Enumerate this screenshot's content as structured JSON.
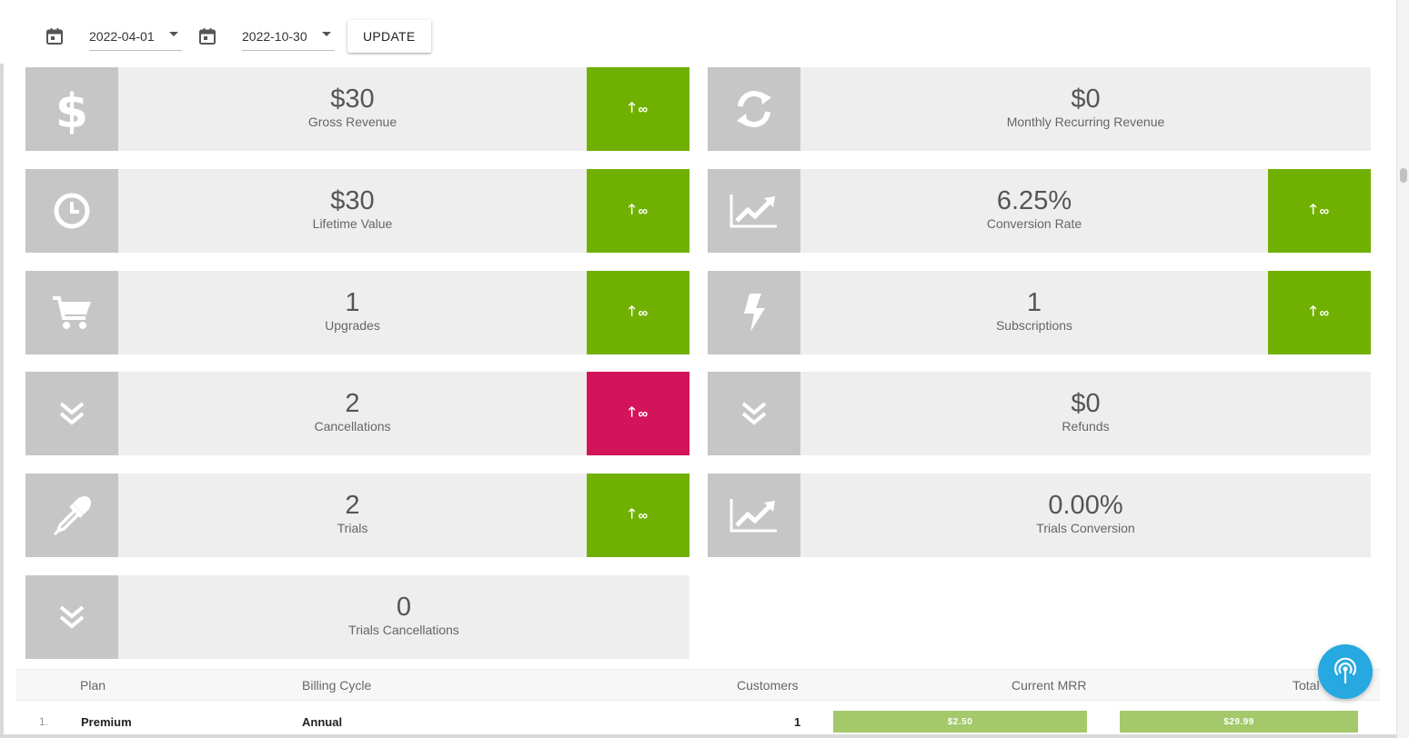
{
  "toolbar": {
    "start_date": "2022-04-01",
    "end_date": "2022-10-30",
    "update_label": "UPDATE"
  },
  "colors": {
    "up_good": "#70b000",
    "up_bad": "#d4145a",
    "bar": "#a3c96b",
    "fab": "#26a8e0"
  },
  "cards": {
    "gross_revenue": {
      "value": "$30",
      "label": "Gross Revenue",
      "delta": "∞",
      "icon": "dollar-icon"
    },
    "mrr": {
      "value": "$0",
      "label": "Monthly Recurring Revenue",
      "icon": "refresh-icon"
    },
    "ltv": {
      "value": "$30",
      "label": "Lifetime Value",
      "delta": "∞",
      "icon": "clock-icon"
    },
    "conversion": {
      "value": "6.25%",
      "label": "Conversion Rate",
      "delta": "∞",
      "icon": "chart-line-icon"
    },
    "upgrades": {
      "value": "1",
      "label": "Upgrades",
      "delta": "∞",
      "icon": "cart-icon"
    },
    "subscriptions": {
      "value": "1",
      "label": "Subscriptions",
      "delta": "∞",
      "icon": "bolt-icon"
    },
    "cancellations": {
      "value": "2",
      "label": "Cancellations",
      "delta": "∞",
      "icon": "double-chevron-down-icon"
    },
    "refunds": {
      "value": "$0",
      "label": "Refunds",
      "icon": "double-chevron-down-icon"
    },
    "trials": {
      "value": "2",
      "label": "Trials",
      "delta": "∞",
      "icon": "eyedropper-icon"
    },
    "trials_conversion": {
      "value": "0.00%",
      "label": "Trials Conversion",
      "icon": "chart-line-icon"
    },
    "trials_cancellations": {
      "value": "0",
      "label": "Trials Cancellations",
      "icon": "double-chevron-down-icon"
    }
  },
  "table": {
    "headers": {
      "plan": "Plan",
      "billing": "Billing Cycle",
      "customers": "Customers",
      "mrr": "Current MRR",
      "total": "Total"
    },
    "rows": [
      {
        "index": "1.",
        "plan": "Premium",
        "billing": "Annual",
        "customers": "1",
        "mrr": "$2.50",
        "total": "$29.99"
      }
    ]
  },
  "fab": {
    "icon": "broadcast-icon"
  }
}
